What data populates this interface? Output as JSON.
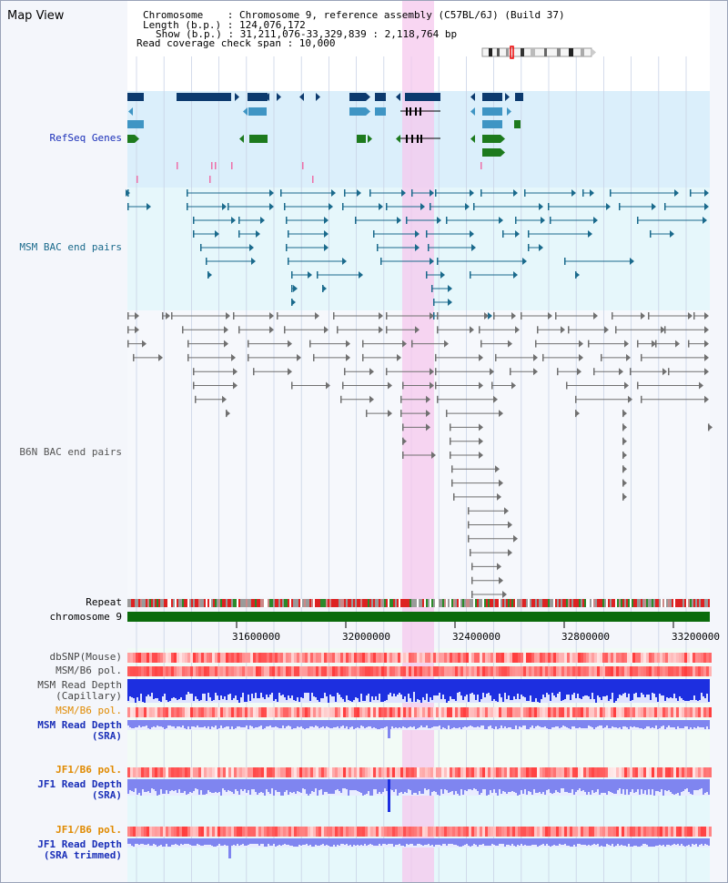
{
  "header": {
    "title": "Map View",
    "info_lines": [
      "Chromosome    : Chromosome 9, reference assembly (C57BL/6J) (Build 37)",
      "Length (b.p.) : 124,076,172",
      "Show (b.p.) : 31,211,076-33,329,839 : 2,118,764 bp",
      "Read coverage check span : 10,000"
    ]
  },
  "tracks": {
    "refseq": "RefSeq Genes",
    "msm_bac": "MSM BAC end pairs",
    "b6n_bac": "B6N BAC end pairs",
    "repeat": "Repeat",
    "chromosome": "chromosome 9",
    "dbsnp": "dbSNP(Mouse)",
    "msm_b6_pol": "MSM/B6 pol.",
    "msm_depth_cap_1": "MSM Read Depth",
    "msm_depth_cap_2": "(Capillary)",
    "msm_b6_pol_2": "MSM/B6 pol.",
    "msm_depth_sra_1": "MSM Read Depth",
    "msm_depth_sra_2": "(SRA)",
    "jf1_b6_pol": "JF1/B6 pol.",
    "jf1_depth_sra_1": "JF1 Read Depth",
    "jf1_depth_sra_2": "(SRA)",
    "jf1_b6_pol_2": "JF1/B6 pol.",
    "jf1_depth_trim_1": "JF1 Read Depth",
    "jf1_depth_trim_2": "(SRA trimmed)"
  },
  "axis": {
    "ticks": [
      "31600000",
      "32000000",
      "32400000",
      "32800000",
      "33200000"
    ]
  },
  "colors": {
    "refseq_bg": "#dbeffb",
    "bac_bg": "#e6f7fb",
    "highlight": "#f5c8ee",
    "dark_gene": "#0c3a6e",
    "mid_gene": "#3f95c4",
    "green_gene": "#1d7a1d",
    "msm_pair": "#1a6a8c",
    "b6n_pair": "#707070",
    "chrom_bar": "#0b6b0b",
    "depth_dark": "#1d2fe0",
    "depth_light": "#7f85f0"
  }
}
